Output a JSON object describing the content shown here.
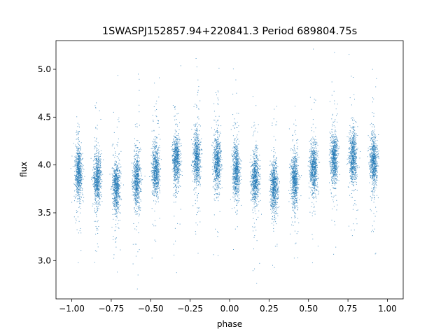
{
  "chart_data": {
    "type": "scatter",
    "title": "1SWASPJ152857.94+220841.3 Period 689804.75s",
    "xlabel": "phase",
    "ylabel": "flux",
    "xlim": [
      -1.1,
      1.1
    ],
    "ylim": [
      2.6,
      5.3
    ],
    "xticks": [
      -1.0,
      -0.75,
      -0.5,
      -0.25,
      0.0,
      0.25,
      0.5,
      0.75,
      1.0
    ],
    "xtick_labels": [
      "−1.00",
      "−0.75",
      "−0.50",
      "−0.25",
      "0.00",
      "0.25",
      "0.50",
      "0.75",
      "1.00"
    ],
    "yticks": [
      3.0,
      3.5,
      4.0,
      4.5,
      5.0
    ],
    "ytick_labels": [
      "3.0",
      "3.5",
      "4.0",
      "4.5",
      "5.0"
    ],
    "grid": false,
    "legend": "none",
    "point_color": "#1f77b4",
    "clusters": [
      {
        "x": -0.96,
        "y": 3.93
      },
      {
        "x": -0.84,
        "y": 3.85
      },
      {
        "x": -0.72,
        "y": 3.78
      },
      {
        "x": -0.59,
        "y": 3.85
      },
      {
        "x": -0.47,
        "y": 3.95
      },
      {
        "x": -0.34,
        "y": 4.05
      },
      {
        "x": -0.21,
        "y": 4.07
      },
      {
        "x": -0.08,
        "y": 4.03
      },
      {
        "x": 0.04,
        "y": 3.95
      },
      {
        "x": 0.16,
        "y": 3.85
      },
      {
        "x": 0.28,
        "y": 3.78
      },
      {
        "x": 0.41,
        "y": 3.85
      },
      {
        "x": 0.53,
        "y": 3.97
      },
      {
        "x": 0.66,
        "y": 4.07
      },
      {
        "x": 0.78,
        "y": 4.08
      },
      {
        "x": 0.91,
        "y": 4.03
      }
    ]
  }
}
